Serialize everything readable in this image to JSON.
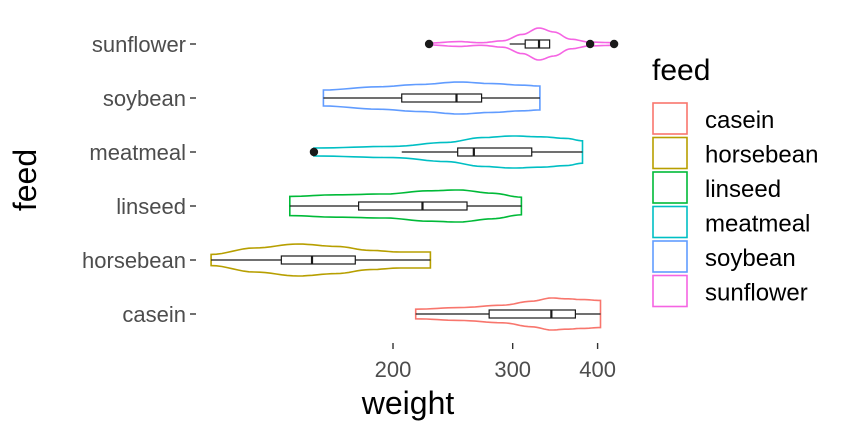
{
  "chart_data": {
    "type": "violin",
    "orientation": "horizontal",
    "xlabel": "weight",
    "ylabel": "feed",
    "x_scale": "log10",
    "xlim": [
      104,
      420
    ],
    "x_ticks": [
      200,
      300,
      400
    ],
    "x_tick_labels": [
      "200",
      "300",
      "400"
    ],
    "categories": [
      "casein",
      "horsebean",
      "linseed",
      "meatmeal",
      "soybean",
      "sunflower"
    ],
    "legend": {
      "title": "feed",
      "position": "right",
      "labels": [
        "casein",
        "horsebean",
        "linseed",
        "meatmeal",
        "soybean",
        "sunflower"
      ]
    },
    "grid": false,
    "series": [
      {
        "name": "casein",
        "color": "#F8766D",
        "range": [
          216,
          404
        ],
        "box": {
          "q1": 277,
          "median": 342,
          "q3": 371,
          "whisker_low": 216,
          "whisker_high": 404
        },
        "outliers": [],
        "density": [
          [
            216,
            0.3
          ],
          [
            250,
            0.4
          ],
          [
            290,
            0.55
          ],
          [
            320,
            0.8
          ],
          [
            342,
            1.0
          ],
          [
            360,
            0.95
          ],
          [
            380,
            0.9
          ],
          [
            404,
            0.85
          ]
        ]
      },
      {
        "name": "horsebean",
        "color": "#B79F00",
        "range": [
          108,
          227
        ],
        "box": {
          "q1": 137,
          "median": 152,
          "q3": 176,
          "whisker_low": 108,
          "whisker_high": 227
        },
        "outliers": [],
        "density": [
          [
            108,
            0.35
          ],
          [
            125,
            0.75
          ],
          [
            145,
            1.0
          ],
          [
            165,
            0.85
          ],
          [
            185,
            0.6
          ],
          [
            205,
            0.5
          ],
          [
            227,
            0.5
          ]
        ]
      },
      {
        "name": "linseed",
        "color": "#00BA38",
        "range": [
          141,
          309
        ],
        "box": {
          "q1": 178,
          "median": 221,
          "q3": 257,
          "whisker_low": 141,
          "whisker_high": 309
        },
        "outliers": [],
        "density": [
          [
            141,
            0.6
          ],
          [
            165,
            0.7
          ],
          [
            195,
            0.75
          ],
          [
            225,
            0.95
          ],
          [
            250,
            1.0
          ],
          [
            280,
            0.8
          ],
          [
            309,
            0.55
          ]
        ]
      },
      {
        "name": "meatmeal",
        "color": "#00BFC4",
        "range": [
          153,
          380
        ],
        "box": {
          "q1": 249,
          "median": 263,
          "q3": 320,
          "whisker_low": 206,
          "whisker_high": 380
        },
        "outliers": [
          153
        ],
        "density": [
          [
            153,
            0.25
          ],
          [
            200,
            0.35
          ],
          [
            240,
            0.6
          ],
          [
            270,
            0.9
          ],
          [
            300,
            1.0
          ],
          [
            330,
            0.95
          ],
          [
            360,
            0.85
          ],
          [
            380,
            0.7
          ]
        ]
      },
      {
        "name": "soybean",
        "color": "#619CFF",
        "range": [
          158,
          329
        ],
        "box": {
          "q1": 206,
          "median": 248,
          "q3": 270,
          "whisker_low": 158,
          "whisker_high": 329
        },
        "outliers": [],
        "density": [
          [
            158,
            0.5
          ],
          [
            190,
            0.7
          ],
          [
            220,
            0.85
          ],
          [
            250,
            1.0
          ],
          [
            280,
            0.9
          ],
          [
            310,
            0.8
          ],
          [
            329,
            0.75
          ]
        ]
      },
      {
        "name": "sunflower",
        "color": "#F564E3",
        "range": [
          226,
          423
        ],
        "box": {
          "q1": 313,
          "median": 328,
          "q3": 340,
          "whisker_low": 297,
          "whisker_high": 340
        },
        "outliers": [
          226,
          390,
          423
        ],
        "density": [
          [
            226,
            0.06
          ],
          [
            250,
            0.15
          ],
          [
            270,
            0.08
          ],
          [
            290,
            0.2
          ],
          [
            310,
            0.6
          ],
          [
            328,
            1.0
          ],
          [
            345,
            0.75
          ],
          [
            365,
            0.3
          ],
          [
            390,
            0.12
          ],
          [
            423,
            0.08
          ]
        ]
      }
    ]
  }
}
